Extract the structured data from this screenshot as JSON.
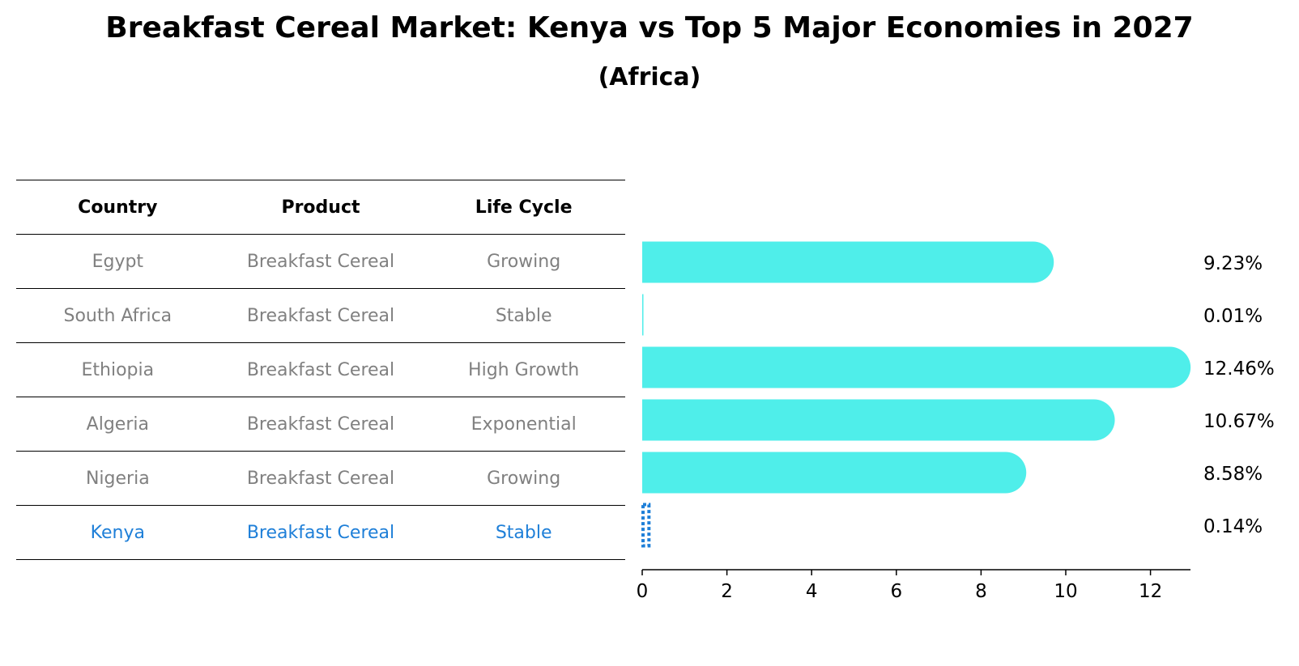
{
  "title": "Breakfast Cereal Market: Kenya vs Top 5 Major Economies in 2027",
  "subtitle": "(Africa)",
  "table": {
    "headers": [
      "Country",
      "Product",
      "Life Cycle"
    ],
    "rows": [
      {
        "country": "Egypt",
        "product": "Breakfast Cereal",
        "life_cycle": "Growing"
      },
      {
        "country": "South Africa",
        "product": "Breakfast Cereal",
        "life_cycle": "Stable"
      },
      {
        "country": "Ethiopia",
        "product": "Breakfast Cereal",
        "life_cycle": "High Growth"
      },
      {
        "country": "Algeria",
        "product": "Breakfast Cereal",
        "life_cycle": "Exponential"
      },
      {
        "country": "Nigeria",
        "product": "Breakfast Cereal",
        "life_cycle": "Growing"
      },
      {
        "country": "Kenya",
        "product": "Breakfast Cereal",
        "life_cycle": "Stable"
      }
    ]
  },
  "colors": {
    "bar": "#4FEEEA",
    "highlight": "#1E7FD8",
    "muted": "#808080"
  },
  "chart_data": {
    "type": "bar",
    "orientation": "horizontal",
    "categories": [
      "Egypt",
      "South Africa",
      "Ethiopia",
      "Algeria",
      "Nigeria",
      "Kenya"
    ],
    "values": [
      9.23,
      0.01,
      12.46,
      10.67,
      8.58,
      0.14
    ],
    "value_labels": [
      "9.23%",
      "0.01%",
      "12.46%",
      "10.67%",
      "8.58%",
      "0.14%"
    ],
    "highlight": "Kenya",
    "xticks": [
      "0",
      "2",
      "4",
      "6",
      "8",
      "10",
      "12"
    ],
    "xlim": [
      0,
      13.1
    ],
    "grid": false
  }
}
